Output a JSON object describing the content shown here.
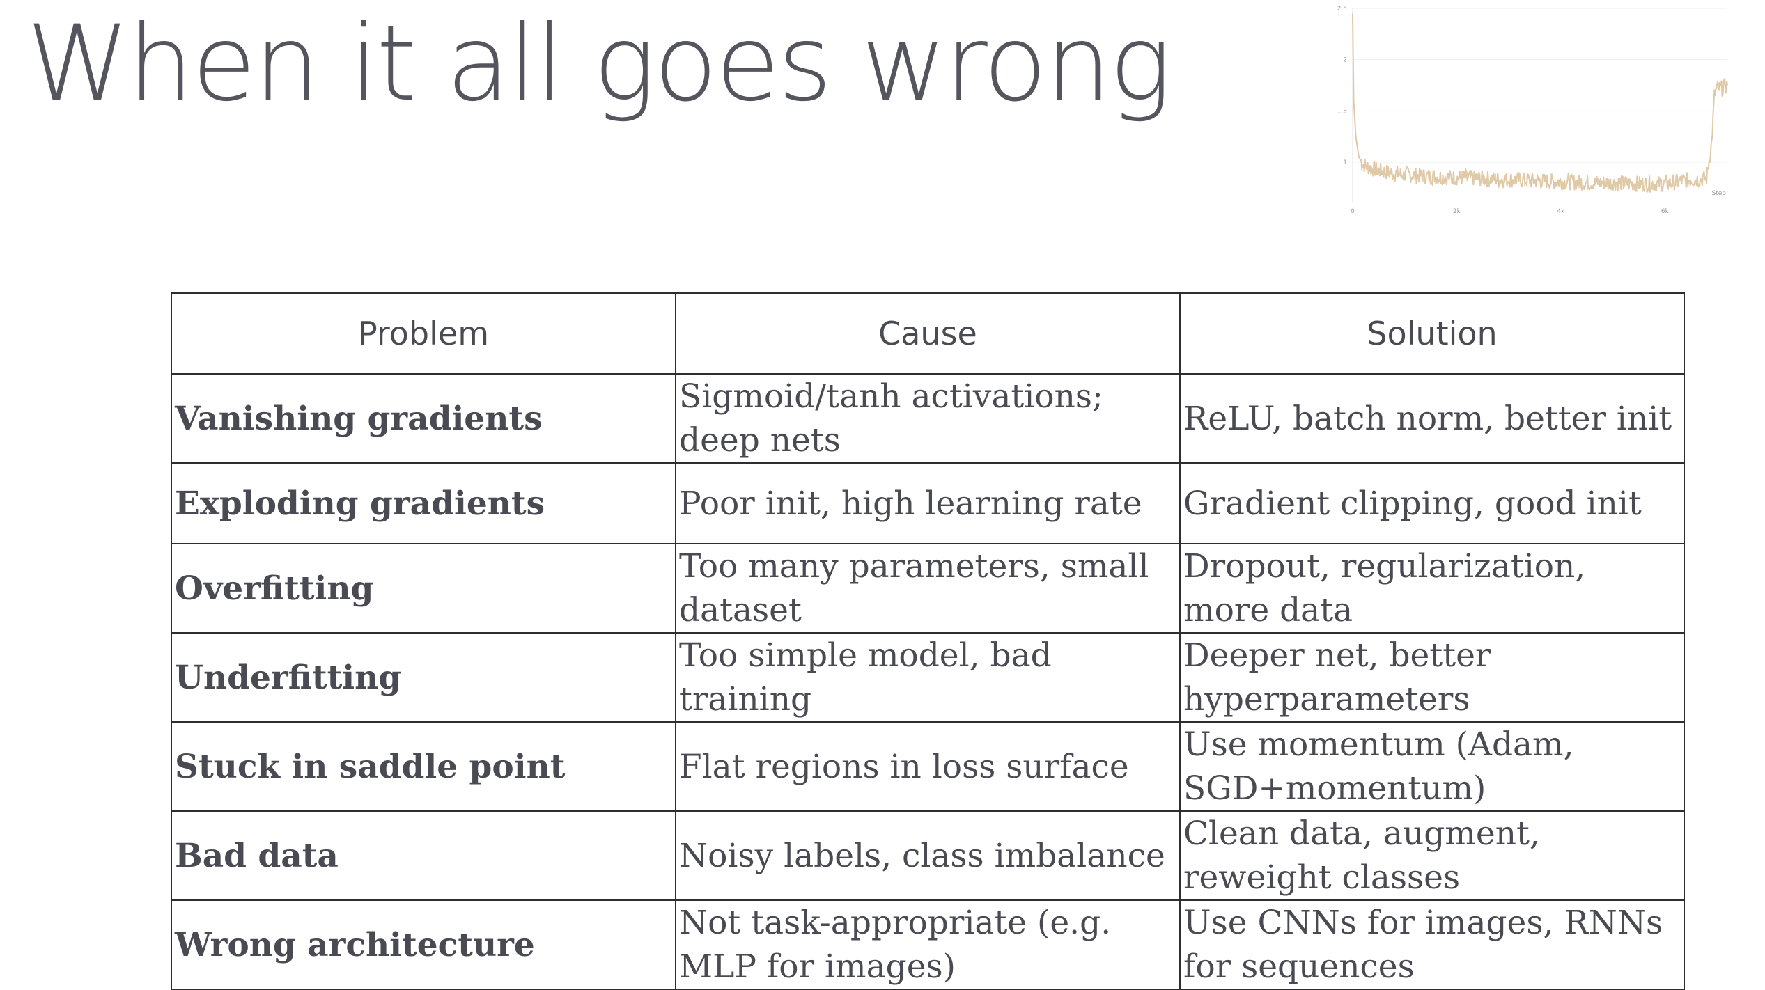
{
  "slide": {
    "title": "When it all goes wrong"
  },
  "loss_chart": {
    "color": "#d9bf96",
    "chart_data": {
      "type": "line",
      "xlabel": "Step",
      "ylabel": "",
      "x_ticks": [
        0,
        2000,
        4000,
        6000
      ],
      "x_tick_labels": [
        "0",
        "2k",
        "4k",
        "6k"
      ],
      "y_ticks": [
        1,
        1.5,
        2,
        2.5
      ],
      "y_tick_labels": [
        "1",
        "1.5",
        "2",
        "2.5"
      ],
      "xlim": [
        0,
        7200
      ],
      "ylim": [
        0.6,
        2.5
      ],
      "grid": true,
      "series": [
        {
          "x": [
            0,
            20,
            60,
            120,
            200,
            350,
            500,
            800,
            1200,
            1600,
            2000,
            2500,
            3000,
            3500,
            4000,
            4500,
            5000,
            5500,
            6000,
            6500,
            6800,
            6900,
            6950,
            7000,
            7100,
            7200
          ],
          "values": [
            2.45,
            1.6,
            1.25,
            1.05,
            0.98,
            0.94,
            0.92,
            0.89,
            0.87,
            0.86,
            0.85,
            0.84,
            0.83,
            0.82,
            0.81,
            0.8,
            0.8,
            0.79,
            0.79,
            0.83,
            0.84,
            1.2,
            1.65,
            1.72,
            1.72,
            1.75
          ]
        }
      ]
    }
  },
  "table": {
    "headers": [
      "Problem",
      "Cause",
      "Solution"
    ],
    "rows": [
      {
        "problem": "Vanishing gradients",
        "cause": "Sigmoid/tanh activations; deep nets",
        "solution": "ReLU, batch norm, better init"
      },
      {
        "problem": "Exploding gradients",
        "cause": "Poor init, high learning rate",
        "solution": "Gradient clipping, good init"
      },
      {
        "problem": "Overfitting",
        "cause": "Too many parameters, small dataset",
        "solution": "Dropout, regularization, more data"
      },
      {
        "problem": "Underfitting",
        "cause": "Too simple model, bad training",
        "solution": "Deeper net, better hyperparameters"
      },
      {
        "problem": "Stuck in saddle point",
        "cause": "Flat regions in loss surface",
        "solution": "Use momentum (Adam, SGD+momentum)"
      },
      {
        "problem": "Bad data",
        "cause": "Noisy labels, class imbalance",
        "solution": "Clean data, augment, reweight classes"
      },
      {
        "problem": "Wrong architecture",
        "cause": "Not task-appropriate (e.g. MLP for images)",
        "solution": "Use CNNs for images, RNNs for sequences"
      }
    ]
  }
}
